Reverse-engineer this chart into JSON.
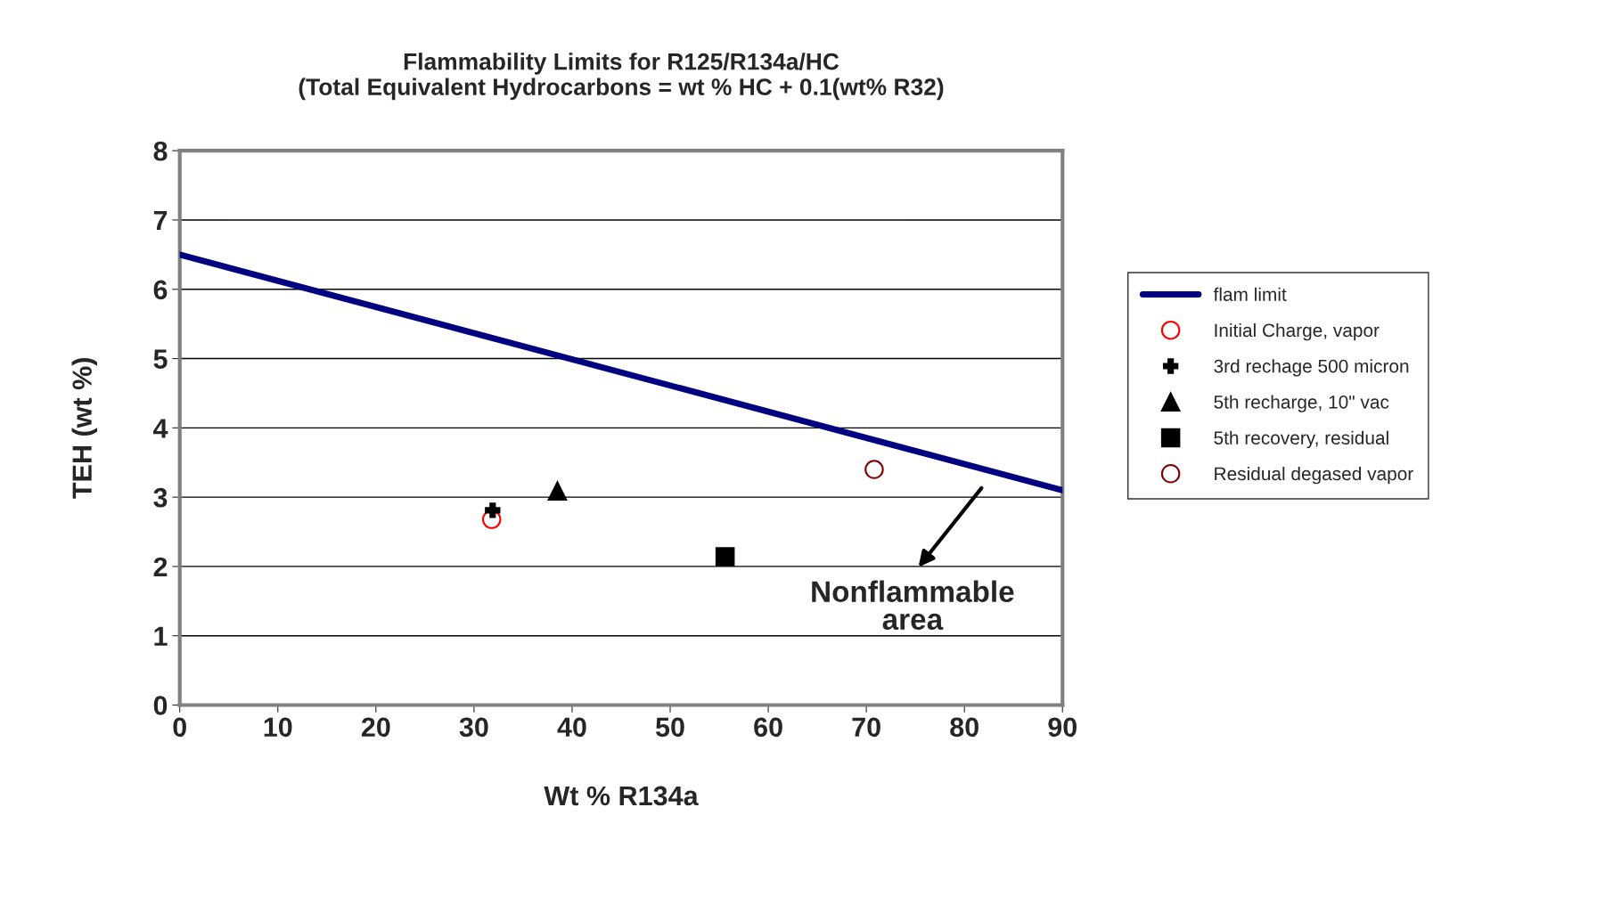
{
  "chart_data": {
    "type": "scatter",
    "title": "Flammability Limits for R125/R134a/HC\n(Total Equivalent Hydrocarbons = wt % HC + 0.1(wt% R32)",
    "xlabel": "Wt % R134a",
    "ylabel": "TEH (wt %)",
    "xlim": [
      0,
      90
    ],
    "xticks": [
      0,
      10,
      20,
      30,
      40,
      50,
      60,
      70,
      80,
      90
    ],
    "ylim": [
      0,
      8
    ],
    "yticks": [
      0,
      1,
      2,
      3,
      4,
      5,
      6,
      7,
      8
    ],
    "grid": "y",
    "legend": "right",
    "series": [
      {
        "name": "flam limit",
        "type": "line",
        "color": "#000080",
        "x": [
          0,
          90
        ],
        "values": [
          6.5,
          3.1
        ],
        "marker": "none",
        "line_style": "solid"
      },
      {
        "name": "Initial Charge, vapor",
        "color": "#ff0000",
        "x": [
          31.8
        ],
        "values": [
          2.68
        ],
        "marker": "circle"
      },
      {
        "name": "3rd rechage 500 micron",
        "color": "#000000",
        "x": [
          31.9
        ],
        "values": [
          2.81
        ],
        "marker": "cross"
      },
      {
        "name": "5th recharge, 10\" vac",
        "color": "#000000",
        "x": [
          38.5
        ],
        "values": [
          3.09
        ],
        "marker": "triangle"
      },
      {
        "name": "5th recovery, residual",
        "color": "#000000",
        "x": [
          55.6
        ],
        "values": [
          2.14
        ],
        "marker": "square"
      },
      {
        "name": "Residual degased vapor",
        "color": "#800000",
        "x": [
          70.8
        ],
        "values": [
          3.4
        ],
        "marker": "circle"
      }
    ],
    "annotations": [
      "Nonflammable\narea"
    ]
  }
}
